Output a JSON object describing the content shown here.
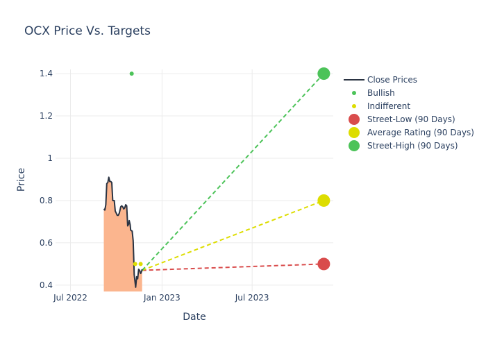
{
  "chart_data": {
    "type": "line",
    "title": "OCX Price Vs. Targets",
    "xlabel": "Date",
    "ylabel": "Price",
    "xlim": [
      "2022-06-01",
      "2023-12-11"
    ],
    "ylim": [
      0.37,
      1.42
    ],
    "x_ticks": [
      {
        "date": "2022-07-01",
        "label": "Jul 2022"
      },
      {
        "date": "2023-01-01",
        "label": "Jan 2023"
      },
      {
        "date": "2023-07-01",
        "label": "Jul 2023"
      }
    ],
    "y_ticks": [
      {
        "value": 0.4,
        "label": "0.4"
      },
      {
        "value": 0.6,
        "label": "0.6"
      },
      {
        "value": 0.8,
        "label": "0.8"
      },
      {
        "value": 1.0,
        "label": "1"
      },
      {
        "value": 1.2,
        "label": "1.2"
      },
      {
        "value": 1.4,
        "label": "1.4"
      }
    ],
    "grid": true,
    "legend_position": "right",
    "colors": {
      "close": "#2a3342",
      "fill": "#fbb58e",
      "bullish": "#4cc359",
      "indifferent": "#dddd00",
      "street_low": "#d94c4c",
      "average": "#dddd00",
      "street_high": "#4cc359"
    },
    "series": [
      {
        "name": "Close Prices",
        "kind": "line",
        "points": [
          [
            "2022-09-06",
            0.76
          ],
          [
            "2022-09-08",
            0.755
          ],
          [
            "2022-09-10",
            0.78
          ],
          [
            "2022-09-12",
            0.88
          ],
          [
            "2022-09-14",
            0.885
          ],
          [
            "2022-09-16",
            0.91
          ],
          [
            "2022-09-18",
            0.89
          ],
          [
            "2022-09-20",
            0.89
          ],
          [
            "2022-09-22",
            0.885
          ],
          [
            "2022-09-24",
            0.8
          ],
          [
            "2022-09-27",
            0.8
          ],
          [
            "2022-09-29",
            0.75
          ],
          [
            "2022-10-01",
            0.74
          ],
          [
            "2022-10-03",
            0.73
          ],
          [
            "2022-10-05",
            0.73
          ],
          [
            "2022-10-07",
            0.74
          ],
          [
            "2022-10-10",
            0.77
          ],
          [
            "2022-10-12",
            0.775
          ],
          [
            "2022-10-14",
            0.77
          ],
          [
            "2022-10-16",
            0.76
          ],
          [
            "2022-10-18",
            0.765
          ],
          [
            "2022-10-20",
            0.78
          ],
          [
            "2022-10-22",
            0.775
          ],
          [
            "2022-10-24",
            0.68
          ],
          [
            "2022-10-26",
            0.69
          ],
          [
            "2022-10-27",
            0.705
          ],
          [
            "2022-10-29",
            0.685
          ],
          [
            "2022-10-30",
            0.66
          ],
          [
            "2022-11-02",
            0.655
          ],
          [
            "2022-11-04",
            0.61
          ],
          [
            "2022-11-05",
            0.54
          ],
          [
            "2022-11-06",
            0.45
          ],
          [
            "2022-11-07",
            0.43
          ],
          [
            "2022-11-09",
            0.39
          ],
          [
            "2022-11-11",
            0.44
          ],
          [
            "2022-11-13",
            0.43
          ],
          [
            "2022-11-15",
            0.475
          ],
          [
            "2022-11-17",
            0.47
          ],
          [
            "2022-11-19",
            0.455
          ],
          [
            "2022-11-21",
            0.465
          ],
          [
            "2022-11-22",
            0.475
          ]
        ]
      },
      {
        "name": "Bullish",
        "kind": "marker",
        "points": [
          [
            "2022-11-01",
            1.4
          ]
        ]
      },
      {
        "name": "Indifferent",
        "kind": "marker",
        "points": [
          [
            "2022-11-08",
            0.5
          ],
          [
            "2022-11-19",
            0.5
          ]
        ]
      },
      {
        "name": "Street-Low (90 Days)",
        "kind": "target",
        "from": [
          "2022-11-22",
          0.47
        ],
        "to": [
          "2023-11-22",
          0.5
        ]
      },
      {
        "name": "Average Rating (90 Days)",
        "kind": "target",
        "from": [
          "2022-11-22",
          0.47
        ],
        "to": [
          "2023-11-22",
          0.8
        ]
      },
      {
        "name": "Street-High (90 Days)",
        "kind": "target",
        "from": [
          "2022-11-22",
          0.47
        ],
        "to": [
          "2023-11-22",
          1.4
        ]
      }
    ]
  }
}
